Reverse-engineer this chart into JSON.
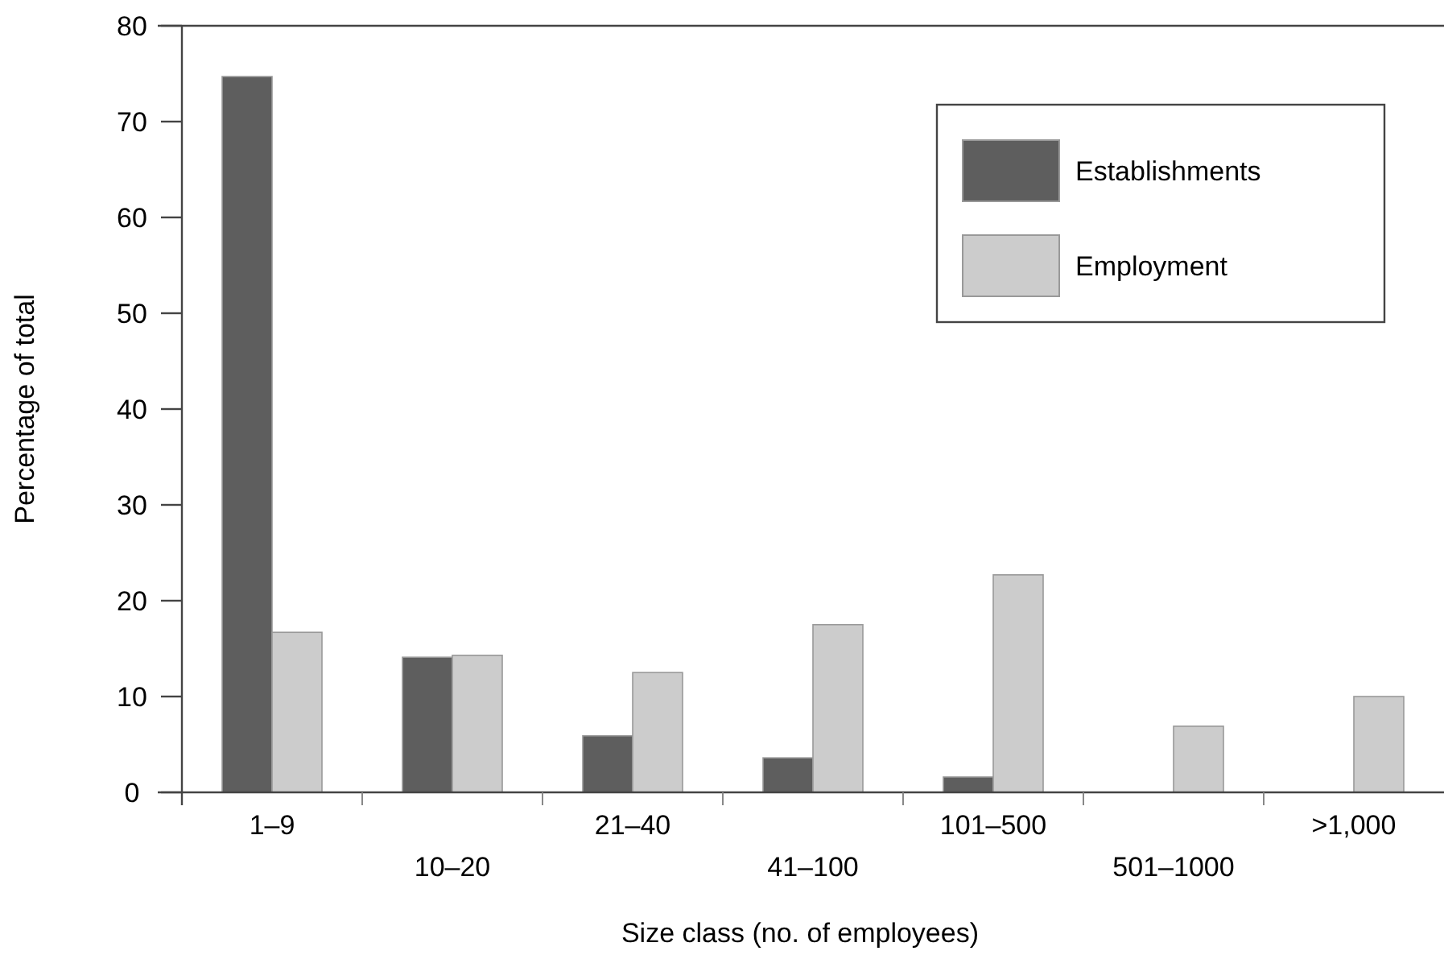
{
  "chart_data": {
    "type": "bar",
    "xlabel": "Size class (no. of employees)",
    "ylabel": "Percentage of total",
    "categories": [
      "1–9",
      "10–20",
      "21–40",
      "41–100",
      "101–500",
      "501–1000",
      ">1,000"
    ],
    "series": [
      {
        "name": "Establishments",
        "color": "#5e5e5e",
        "values": [
          74.7,
          14.1,
          5.9,
          3.6,
          1.6,
          0,
          0
        ]
      },
      {
        "name": "Employment",
        "color": "#cccccc",
        "values": [
          16.7,
          14.3,
          12.5,
          17.5,
          22.7,
          6.9,
          10.0
        ]
      }
    ],
    "ylim": [
      0,
      80
    ],
    "yticks": [
      0,
      10,
      20,
      30,
      40,
      50,
      60,
      70,
      80
    ],
    "grid": false,
    "legend": "top right"
  }
}
